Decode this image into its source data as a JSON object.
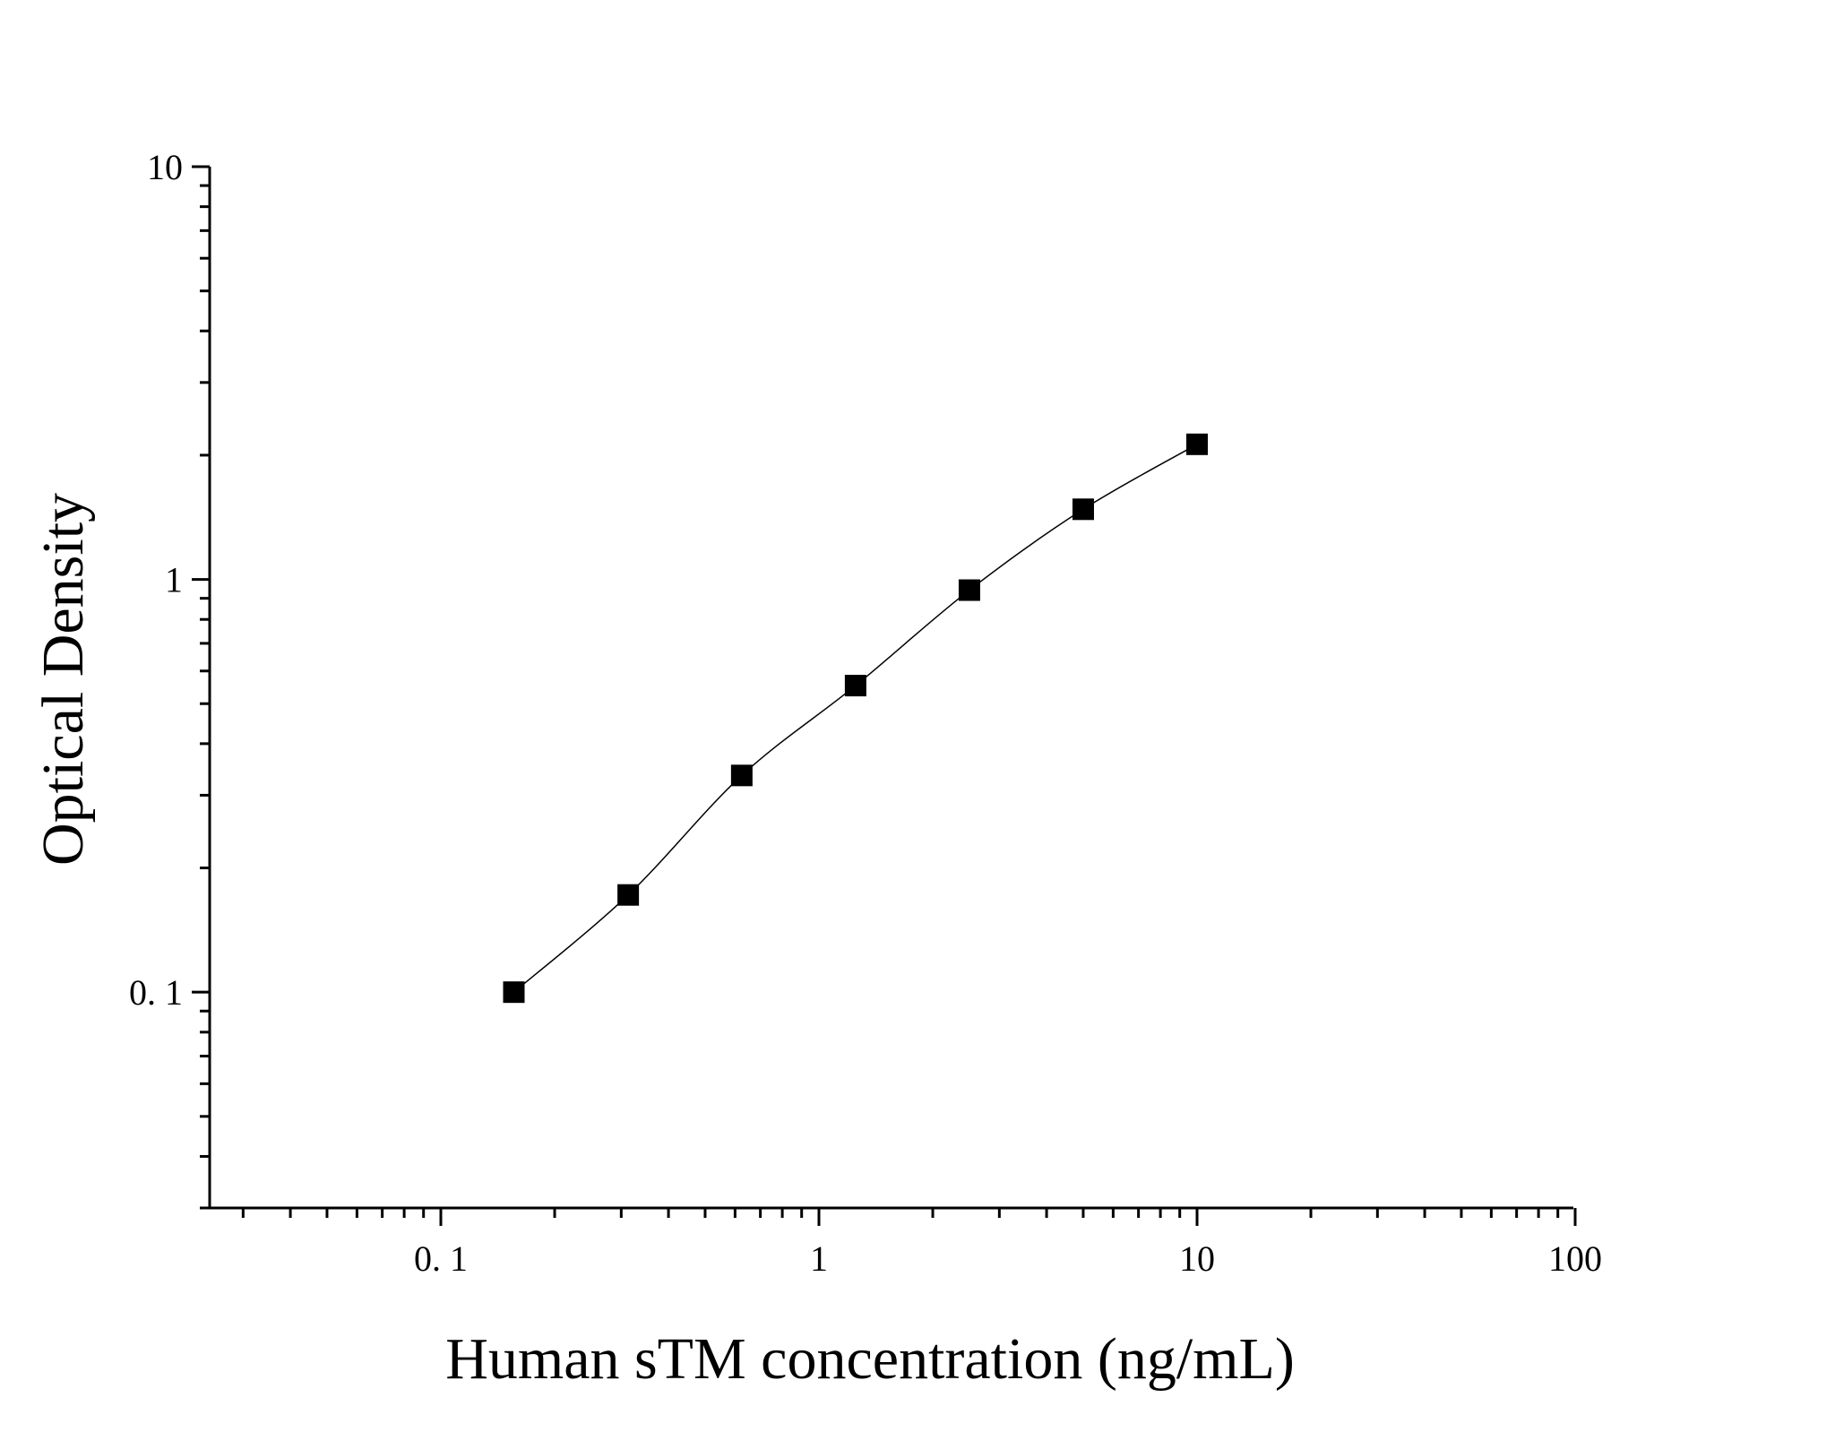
{
  "chart_data": {
    "type": "scatter",
    "title": "",
    "xlabel": "Human sTM concentration (ng/mL)",
    "ylabel": "Optical Density",
    "xscale": "log",
    "yscale": "log",
    "xlim": [
      0.025,
      100
    ],
    "ylim": [
      0.03,
      10
    ],
    "x_ticks": [
      {
        "value": 0.1,
        "label": "0. 1"
      },
      {
        "value": 1,
        "label": "1"
      },
      {
        "value": 10,
        "label": "10"
      },
      {
        "value": 100,
        "label": "100"
      }
    ],
    "y_ticks": [
      {
        "value": 0.1,
        "label": "0. 1"
      },
      {
        "value": 1,
        "label": "1"
      },
      {
        "value": 10,
        "label": "10"
      }
    ],
    "grid": false,
    "legend": "none",
    "marker": "square",
    "color": "#000000",
    "series": [
      {
        "x": [
          0.156,
          0.313,
          0.625,
          1.25,
          2.5,
          5,
          10
        ],
        "y": [
          0.1,
          0.172,
          0.335,
          0.553,
          0.942,
          1.479,
          2.125
        ]
      }
    ],
    "fit_curve": "smooth"
  }
}
